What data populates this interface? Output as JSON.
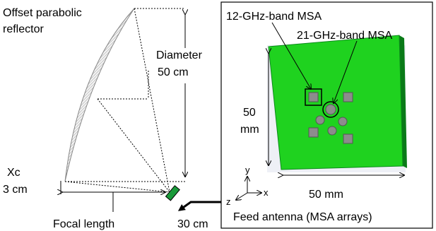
{
  "reflector_label": [
    "Offset parabolic",
    "reflector"
  ],
  "diameter": {
    "label": "Diameter",
    "value": "50 cm"
  },
  "xc": {
    "label": "Xc",
    "value": "3 cm"
  },
  "focal_length": {
    "label": "Focal length",
    "value": "30 cm"
  },
  "feed_panel": {
    "msa_12": "12-GHz-band MSA",
    "msa_21": "21-GHz-band MSA",
    "height": [
      "50",
      "mm"
    ],
    "width": "50 mm",
    "axes": {
      "y": "y",
      "z": "z",
      "x": "x"
    },
    "caption": "Feed antenna (MSA arrays)"
  }
}
